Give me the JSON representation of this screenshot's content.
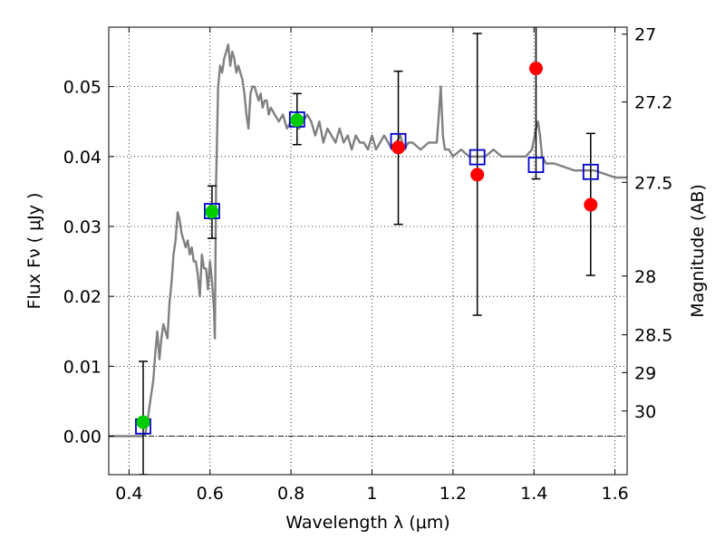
{
  "chart_data": {
    "type": "scatter",
    "xlabel": "Wavelength  λ (μm)",
    "ylabel": "Flux  Fν  ( μJy )",
    "y2label": "Magnitude (AB)",
    "xlim": [
      0.35,
      1.63
    ],
    "ylim": [
      -0.0055,
      0.0585
    ],
    "grid": true,
    "x_ticks": [
      0.4,
      0.6,
      0.8,
      1.0,
      1.2,
      1.4,
      1.6
    ],
    "x_tick_labels": [
      "0.4",
      "0.6",
      "0.8",
      "1",
      "1.2",
      "1.4",
      "1.6"
    ],
    "y_ticks": [
      0.0,
      0.01,
      0.02,
      0.03,
      0.04,
      0.05
    ],
    "y_tick_labels": [
      "0.00",
      "0.01",
      "0.02",
      "0.03",
      "0.04",
      "0.05"
    ],
    "y2_ticks": [
      {
        "label": "27",
        "flux": 0.0575
      },
      {
        "label": "27.2",
        "flux": 0.0478
      },
      {
        "label": "27.5",
        "flux": 0.0363
      },
      {
        "label": "28",
        "flux": 0.0229
      },
      {
        "label": "28.5",
        "flux": 0.0145
      },
      {
        "label": "29",
        "flux": 0.0091
      },
      {
        "label": "30",
        "flux": 0.0036
      }
    ],
    "zero_line": 0.0,
    "series": [
      {
        "kind": "line",
        "color": "#808080",
        "x": [
          0.35,
          0.42,
          0.435,
          0.44,
          0.445,
          0.45,
          0.455,
          0.46,
          0.465,
          0.47,
          0.475,
          0.48,
          0.485,
          0.49,
          0.495,
          0.5,
          0.505,
          0.51,
          0.515,
          0.52,
          0.525,
          0.53,
          0.535,
          0.54,
          0.545,
          0.55,
          0.555,
          0.56,
          0.565,
          0.57,
          0.575,
          0.58,
          0.585,
          0.59,
          0.595,
          0.6,
          0.605,
          0.61,
          0.612,
          0.615,
          0.62,
          0.625,
          0.63,
          0.635,
          0.64,
          0.645,
          0.65,
          0.655,
          0.66,
          0.665,
          0.67,
          0.675,
          0.68,
          0.685,
          0.69,
          0.695,
          0.7,
          0.705,
          0.71,
          0.715,
          0.72,
          0.725,
          0.73,
          0.735,
          0.74,
          0.745,
          0.75,
          0.76,
          0.77,
          0.78,
          0.79,
          0.8,
          0.81,
          0.82,
          0.83,
          0.84,
          0.85,
          0.86,
          0.87,
          0.88,
          0.89,
          0.9,
          0.91,
          0.92,
          0.93,
          0.94,
          0.95,
          0.96,
          0.97,
          0.98,
          0.99,
          1.0,
          1.01,
          1.02,
          1.03,
          1.04,
          1.05,
          1.06,
          1.07,
          1.08,
          1.09,
          1.1,
          1.12,
          1.14,
          1.16,
          1.17,
          1.175,
          1.18,
          1.19,
          1.2,
          1.22,
          1.24,
          1.26,
          1.28,
          1.3,
          1.32,
          1.34,
          1.36,
          1.38,
          1.395,
          1.405,
          1.41,
          1.415,
          1.42,
          1.43,
          1.45,
          1.5,
          1.55,
          1.6,
          1.63
        ],
        "y": [
          0.0,
          0.0,
          0.0,
          0.0002,
          0.002,
          0.004,
          0.006,
          0.008,
          0.012,
          0.015,
          0.011,
          0.014,
          0.016,
          0.015,
          0.014,
          0.019,
          0.022,
          0.026,
          0.028,
          0.032,
          0.031,
          0.029,
          0.028,
          0.027,
          0.028,
          0.026,
          0.027,
          0.025,
          0.025,
          0.023,
          0.02,
          0.026,
          0.024,
          0.024,
          0.021,
          0.025,
          0.022,
          0.018,
          0.014,
          0.036,
          0.05,
          0.053,
          0.052,
          0.054,
          0.055,
          0.056,
          0.053,
          0.055,
          0.054,
          0.052,
          0.053,
          0.052,
          0.051,
          0.049,
          0.046,
          0.044,
          0.049,
          0.05,
          0.05,
          0.049,
          0.048,
          0.049,
          0.047,
          0.048,
          0.048,
          0.046,
          0.047,
          0.046,
          0.045,
          0.046,
          0.044,
          0.045,
          0.046,
          0.044,
          0.045,
          0.046,
          0.045,
          0.043,
          0.045,
          0.042,
          0.044,
          0.043,
          0.042,
          0.044,
          0.042,
          0.043,
          0.041,
          0.043,
          0.042,
          0.042,
          0.041,
          0.043,
          0.041,
          0.042,
          0.043,
          0.042,
          0.041,
          0.042,
          0.043,
          0.041,
          0.042,
          0.042,
          0.041,
          0.042,
          0.042,
          0.05,
          0.043,
          0.041,
          0.041,
          0.04,
          0.041,
          0.04,
          0.04,
          0.04,
          0.041,
          0.04,
          0.04,
          0.04,
          0.04,
          0.041,
          0.044,
          0.045,
          0.043,
          0.04,
          0.039,
          0.039,
          0.038,
          0.038,
          0.037,
          0.037
        ]
      },
      {
        "kind": "squares",
        "color": "#0000cc",
        "x": [
          0.435,
          0.605,
          0.815,
          1.065,
          1.26,
          1.405,
          1.54
        ],
        "y": [
          0.0014,
          0.0322,
          0.0453,
          0.0422,
          0.0399,
          0.0388,
          0.0378
        ]
      },
      {
        "kind": "points",
        "colors": [
          "#00cc00",
          "#00cc00",
          "#00cc00",
          "#ff0000",
          "#ff0000",
          "#ff0000",
          "#ff0000"
        ],
        "x": [
          0.435,
          0.605,
          0.815,
          1.065,
          1.26,
          1.405,
          1.54
        ],
        "y": [
          0.002,
          0.0321,
          0.0452,
          0.0413,
          0.0374,
          0.0526,
          0.0331
        ],
        "yerr_low": [
          -0.0055,
          0.0283,
          0.0417,
          0.0303,
          0.0173,
          0.0368,
          0.023
        ],
        "yerr_high": [
          0.0107,
          0.0358,
          0.049,
          0.0522,
          0.0576,
          0.059,
          0.0433
        ]
      }
    ]
  }
}
